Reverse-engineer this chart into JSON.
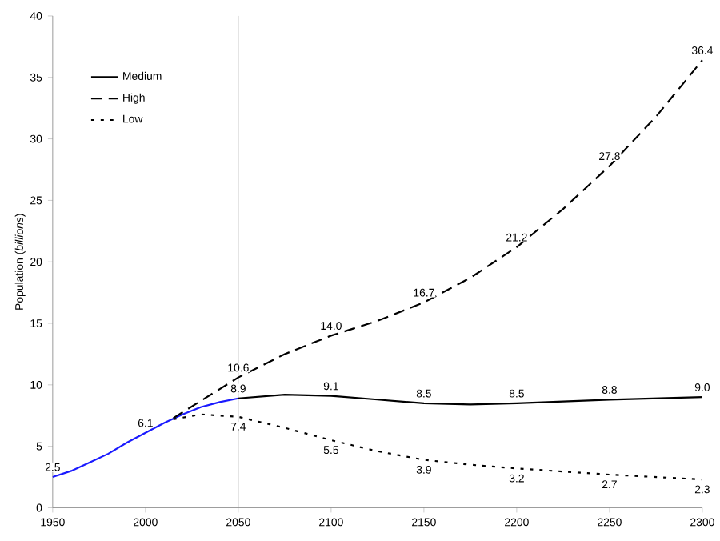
{
  "chart_data": {
    "type": "line",
    "ylabel": "Population (*billions*)",
    "xlim": [
      1950,
      2300
    ],
    "ylim": [
      0,
      40
    ],
    "xticks": [
      1950,
      2000,
      2050,
      2100,
      2150,
      2200,
      2250,
      2300
    ],
    "yticks": [
      0,
      5,
      10,
      15,
      20,
      25,
      30,
      35,
      40
    ],
    "grid": false,
    "legend": "top left",
    "marker": "none",
    "ref_lines": [
      {
        "axis": "x",
        "value": 2050,
        "color": "#a0a0a0"
      }
    ],
    "series": [
      {
        "color": "#1a1aff",
        "line_style": "solid",
        "x": [
          1950,
          1960,
          1970,
          1980,
          1990,
          2000,
          2010,
          2020,
          2030,
          2040,
          2050
        ],
        "values": [
          2.5,
          3.0,
          3.7,
          4.4,
          5.3,
          6.1,
          6.9,
          7.6,
          8.2,
          8.6,
          8.9
        ],
        "value_labels": [
          "2.5",
          null,
          null,
          null,
          null,
          "6.1",
          null,
          null,
          null,
          null,
          "8.9"
        ]
      },
      {
        "name": "Medium",
        "color": "#000000",
        "line_style": "solid",
        "x": [
          2050,
          2075,
          2100,
          2125,
          2150,
          2175,
          2200,
          2250,
          2300
        ],
        "values": [
          8.9,
          9.2,
          9.1,
          8.8,
          8.5,
          8.4,
          8.5,
          8.8,
          9.0
        ],
        "value_labels": [
          null,
          null,
          "9.1",
          null,
          "8.5",
          null,
          "8.5",
          "8.8",
          "9.0"
        ]
      },
      {
        "name": "High",
        "color": "#000000",
        "line_style": "dashed",
        "x": [
          2015,
          2050,
          2075,
          2100,
          2125,
          2150,
          2175,
          2200,
          2225,
          2250,
          2275,
          2300
        ],
        "values": [
          7.3,
          10.6,
          12.5,
          14.0,
          15.2,
          16.7,
          18.7,
          21.2,
          24.3,
          27.8,
          31.8,
          36.4
        ],
        "value_labels": [
          null,
          "10.6",
          null,
          "14.0",
          null,
          "16.7",
          null,
          "21.2",
          null,
          "27.8",
          null,
          "36.4"
        ]
      },
      {
        "name": "Low",
        "color": "#000000",
        "line_style": "dotted",
        "x": [
          2015,
          2030,
          2050,
          2075,
          2100,
          2125,
          2150,
          2175,
          2200,
          2250,
          2300
        ],
        "values": [
          7.2,
          7.6,
          7.4,
          6.5,
          5.5,
          4.6,
          3.9,
          3.5,
          3.2,
          2.7,
          2.3
        ],
        "value_labels": [
          null,
          null,
          "7.4",
          null,
          "5.5",
          null,
          "3.9",
          null,
          "3.2",
          "2.7",
          "2.3"
        ]
      }
    ]
  }
}
